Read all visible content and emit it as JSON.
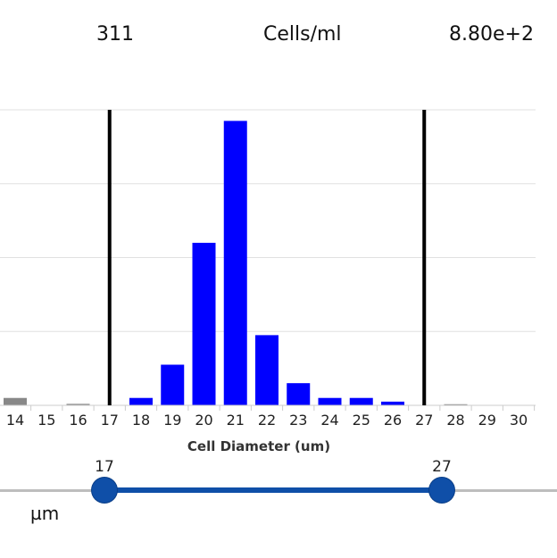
{
  "header": {
    "count": "311",
    "units": "Cells/ml",
    "concentration": "8.80e+2"
  },
  "chart_data": {
    "type": "bar",
    "xlabel": "Cell Diameter (um)",
    "ylabel": "",
    "categories": [
      "14",
      "15",
      "16",
      "17",
      "18",
      "19",
      "20",
      "21",
      "22",
      "23",
      "24",
      "25",
      "26",
      "27",
      "28",
      "29",
      "30"
    ],
    "values": [
      2,
      0,
      0.4,
      0,
      2,
      11,
      44,
      77,
      19,
      6,
      2,
      2,
      1,
      0,
      0.3,
      0,
      0
    ],
    "ylim": [
      0,
      80
    ],
    "grid": true,
    "gate_markers": [
      17,
      27
    ],
    "colors": {
      "in_gate": "#0000ff",
      "out_of_gate": "#888888",
      "marker": "#000000",
      "grid": "#e0e0e0"
    }
  },
  "slider": {
    "min_value": "17",
    "max_value": "27",
    "unit": "µm",
    "accent_color": "#0f4fa8"
  }
}
